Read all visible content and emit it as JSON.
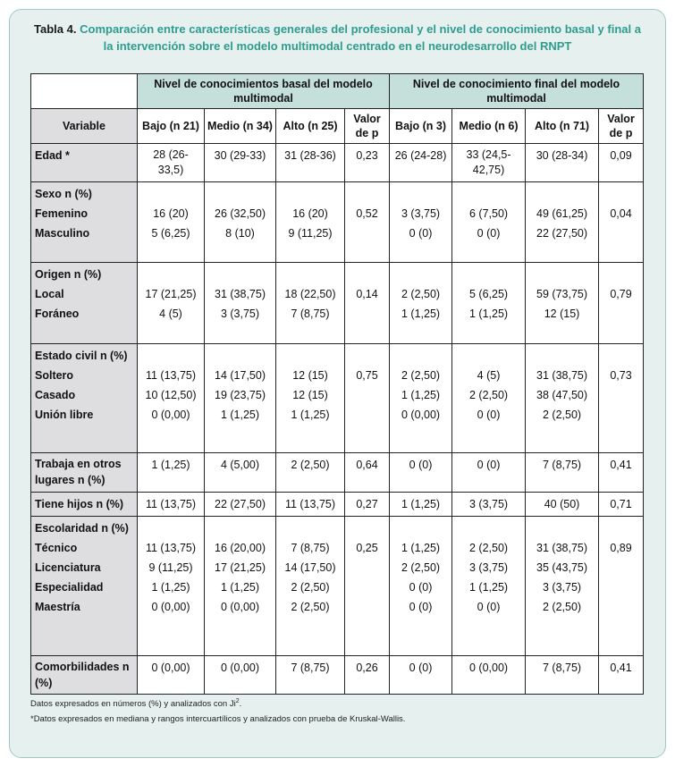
{
  "caption": {
    "label": "Tabla 4.",
    "title": "Comparación entre características generales del profesional y el nivel de conocimiento basal y final a la intervención sobre el modelo multimodal centrado en el neurodesarrollo del RNPT"
  },
  "header": {
    "group_basal": "Nivel de conocimientos basal del modelo multimodal",
    "group_final": "Nivel de conocimiento final del modelo multimodal",
    "variable": "Variable",
    "columns": [
      "Bajo (n 21)",
      "Medio (n 34)",
      "Alto (n 25)",
      "Valor de p",
      "Bajo (n 3)",
      "Medio (n 6)",
      "Alto (n 71)",
      "Valor de p"
    ]
  },
  "rows": {
    "edad": {
      "label": "Edad *",
      "cells": [
        "28 (26-33,5)",
        "30 (29-33)",
        "31 (28-36)",
        "0,23",
        "26 (24-28)",
        "33 (24,5-42,75)",
        "30 (28-34)",
        "0,09"
      ]
    },
    "sexo": {
      "title": "Sexo n (%)",
      "items": [
        {
          "label": "Femenino",
          "cells": [
            "16 (20)",
            "26 (32,50)",
            "16 (20)",
            "0,52",
            "3 (3,75)",
            "6 (7,50)",
            "49 (61,25)",
            "0,04"
          ]
        },
        {
          "label": "Masculino",
          "cells": [
            "5 (6,25)",
            "8 (10)",
            "9 (11,25)",
            "",
            "0 (0)",
            "0 (0)",
            "22 (27,50)",
            ""
          ]
        }
      ]
    },
    "origen": {
      "title": "Origen n (%)",
      "items": [
        {
          "label": "Local",
          "cells": [
            "17 (21,25)",
            "31 (38,75)",
            "18 (22,50)",
            "0,14",
            "2 (2,50)",
            "5 (6,25)",
            "59 (73,75)",
            "0,79"
          ]
        },
        {
          "label": "Foráneo",
          "cells": [
            "4 (5)",
            "3 (3,75)",
            "7 (8,75)",
            "",
            "1 (1,25)",
            "1 (1,25)",
            "12 (15)",
            ""
          ]
        }
      ]
    },
    "civil": {
      "title": "Estado civil n (%)",
      "items": [
        {
          "label": "Soltero",
          "cells": [
            "11 (13,75)",
            "14 (17,50)",
            "12 (15)",
            "0,75",
            "2 (2,50)",
            "4 (5)",
            "31 (38,75)",
            "0,73"
          ]
        },
        {
          "label": "Casado",
          "cells": [
            "10 (12,50)",
            "19 (23,75)",
            "12 (15)",
            "",
            "1 (1,25)",
            "2 (2,50)",
            "38 (47,50)",
            ""
          ]
        },
        {
          "label": "Unión libre",
          "cells": [
            "0 (0,00)",
            "1 (1,25)",
            "1 (1,25)",
            "",
            "0 (0,00)",
            "0 (0)",
            "2 (2,50)",
            ""
          ]
        }
      ]
    },
    "trabaja": {
      "label": "Trabaja en otros lugares n (%)",
      "cells": [
        "1 (1,25)",
        "4 (5,00)",
        "2 (2,50)",
        "0,64",
        "0 (0)",
        "0 (0)",
        "7 (8,75)",
        "0,41"
      ]
    },
    "hijos": {
      "label": "Tiene hijos n (%)",
      "cells": [
        "11 (13,75)",
        "22 (27,50)",
        "11 (13,75)",
        "0,27",
        "1 (1,25)",
        "3 (3,75)",
        "40 (50)",
        "0,71"
      ]
    },
    "escolaridad": {
      "title": "Escolaridad n (%)",
      "items": [
        {
          "label": "Técnico",
          "cells": [
            "11 (13,75)",
            "16 (20,00)",
            "7 (8,75)",
            "0,25",
            "1 (1,25)",
            "2 (2,50)",
            "31 (38,75)",
            "0,89"
          ]
        },
        {
          "label": "Licenciatura",
          "cells": [
            "9 (11,25)",
            "17 (21,25)",
            "14 (17,50)",
            "",
            "2 (2,50)",
            "3 (3,75)",
            "35 (43,75)",
            ""
          ]
        },
        {
          "label": "Especialidad",
          "cells": [
            "1 (1,25)",
            "1 (1,25)",
            "2 (2,50)",
            "",
            "0 (0)",
            "1 (1,25)",
            "3 (3,75)",
            ""
          ]
        },
        {
          "label": "Maestría",
          "cells": [
            "0 (0,00)",
            "0 (0,00)",
            "2 (2,50)",
            "",
            "0 (0)",
            "0 (0)",
            "2 (2,50)",
            ""
          ]
        }
      ]
    },
    "comorbilidades": {
      "label": "Comorbilidades n (%)",
      "cells": [
        "0 (0,00)",
        "0 (0,00)",
        "7 (8,75)",
        "0,26",
        "0 (0)",
        "0 (0,00)",
        "7 (8,75)",
        "0,41"
      ]
    }
  },
  "footnotes": {
    "note1": "Datos expresados en números (%) y analizados con Ji",
    "note1_sup": "2",
    "note1_end": ".",
    "note2": "*Datos expresados en mediana y rangos intercuartílicos y analizados con prueba de Kruskal-Wallis."
  },
  "colors": {
    "frame_bg": "#e6f1ef",
    "title_teal": "#2f9c8e",
    "header_teal": "#c5dfdb",
    "label_grey": "#dedee0"
  }
}
